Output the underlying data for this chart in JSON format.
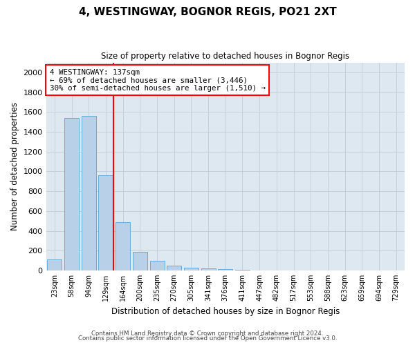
{
  "title": "4, WESTINGWAY, BOGNOR REGIS, PO21 2XT",
  "subtitle": "Size of property relative to detached houses in Bognor Regis",
  "xlabel": "Distribution of detached houses by size in Bognor Regis",
  "ylabel": "Number of detached properties",
  "categories": [
    "23sqm",
    "58sqm",
    "94sqm",
    "129sqm",
    "164sqm",
    "200sqm",
    "235sqm",
    "270sqm",
    "305sqm",
    "341sqm",
    "376sqm",
    "411sqm",
    "447sqm",
    "482sqm",
    "517sqm",
    "553sqm",
    "588sqm",
    "623sqm",
    "659sqm",
    "694sqm",
    "729sqm"
  ],
  "values": [
    110,
    1540,
    1560,
    960,
    490,
    190,
    95,
    45,
    30,
    22,
    15,
    5,
    0,
    0,
    0,
    0,
    0,
    0,
    0,
    0,
    0
  ],
  "bar_color": "#b8d0e8",
  "bar_edgecolor": "#6aaad4",
  "redline_x": 3.45,
  "annotation_line1": "4 WESTINGWAY: 137sqm",
  "annotation_line2": "← 69% of detached houses are smaller (3,446)",
  "annotation_line3": "30% of semi-detached houses are larger (1,510) →",
  "ylim": [
    0,
    2100
  ],
  "yticks": [
    0,
    200,
    400,
    600,
    800,
    1000,
    1200,
    1400,
    1600,
    1800,
    2000
  ],
  "footer1": "Contains HM Land Registry data © Crown copyright and database right 2024.",
  "footer2": "Contains public sector information licensed under the Open Government Licence v3.0.",
  "background_color": "#ffffff",
  "axes_facecolor": "#dde8f0",
  "grid_color": "#c0cdd8"
}
